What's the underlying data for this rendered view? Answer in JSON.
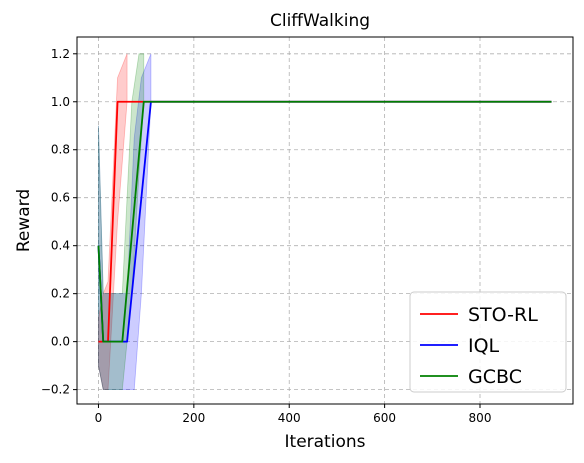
{
  "chart_data": {
    "type": "line",
    "title": "CliffWalking",
    "xlabel": "Iterations",
    "ylabel": "Reward",
    "xlim": [
      -45,
      995
    ],
    "ylim": [
      -0.26,
      1.27
    ],
    "xticks": [
      0,
      200,
      400,
      600,
      800
    ],
    "xtick_labels": [
      "0",
      "200",
      "400",
      "600",
      "800"
    ],
    "yticks": [
      -0.2,
      0.0,
      0.2,
      0.4,
      0.6,
      0.8,
      1.0,
      1.2
    ],
    "ytick_labels": [
      "−0.2",
      "0.0",
      "0.2",
      "0.4",
      "0.6",
      "0.8",
      "1.0",
      "1.2"
    ],
    "grid": true,
    "legend_position": "lower-right",
    "series": [
      {
        "name": "STO-RL",
        "color": "#ff0000",
        "x": [
          0,
          10,
          20,
          40,
          60,
          950
        ],
        "y": [
          0.0,
          0.0,
          0.0,
          1.0,
          1.0,
          1.0
        ],
        "band_color": "#ff0000",
        "band_x": [
          0,
          10,
          20,
          40,
          60
        ],
        "band_lower": [
          -0.1,
          -0.2,
          -0.2,
          0.5,
          1.0
        ],
        "band_upper": [
          0.1,
          0.2,
          0.25,
          1.1,
          1.2
        ]
      },
      {
        "name": "IQL",
        "color": "#0000ff",
        "x": [
          0,
          10,
          20,
          60,
          110,
          950
        ],
        "y": [
          0.4,
          0.0,
          0.0,
          0.0,
          1.0,
          1.0
        ],
        "band_color": "#0000ff",
        "band_x": [
          0,
          10,
          20,
          60,
          75,
          90,
          110
        ],
        "band_lower": [
          -0.1,
          -0.2,
          -0.2,
          -0.2,
          -0.2,
          0.2,
          1.0
        ],
        "band_upper": [
          0.9,
          0.2,
          0.2,
          0.2,
          0.85,
          1.1,
          1.2
        ]
      },
      {
        "name": "GCBC",
        "color": "#008000",
        "x": [
          0,
          10,
          20,
          50,
          95,
          950
        ],
        "y": [
          0.4,
          0.0,
          0.0,
          0.0,
          1.0,
          1.0
        ],
        "band_color": "#008000",
        "band_x": [
          0,
          10,
          20,
          50,
          70,
          85,
          95
        ],
        "band_lower": [
          -0.1,
          -0.2,
          -0.2,
          -0.2,
          0.2,
          0.7,
          1.0
        ],
        "band_upper": [
          0.9,
          0.2,
          0.2,
          0.2,
          1.0,
          1.2,
          1.2
        ]
      }
    ]
  }
}
